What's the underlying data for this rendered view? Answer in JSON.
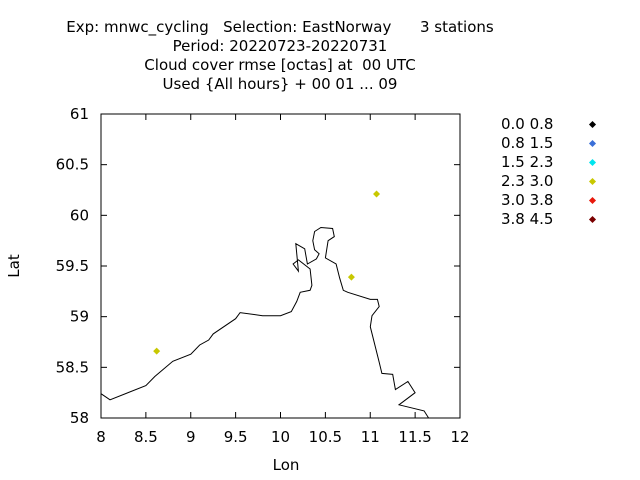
{
  "titles": [
    "Exp: mnwc_cycling   Selection: EastNorway      3 stations",
    "Period: 20220723-20220731",
    "Cloud cover rmse [octas] at  00 UTC",
    "Used {All hours} + 00 01 ... 09"
  ],
  "legend": [
    {
      "label": "0.0 0.8",
      "color": "#000000"
    },
    {
      "label": "0.8 1.5",
      "color": "#3a6fd8"
    },
    {
      "label": "1.5 2.3",
      "color": "#00e5ee"
    },
    {
      "label": "2.3 3.0",
      "color": "#c8c800"
    },
    {
      "label": "3.0 3.8",
      "color": "#e8190c"
    },
    {
      "label": "3.8 4.5",
      "color": "#7a0000"
    }
  ],
  "chart_data": {
    "type": "scatter",
    "xlabel": "Lon",
    "ylabel": "Lat",
    "xlim": [
      8,
      12
    ],
    "ylim": [
      58,
      61
    ],
    "x_ticks": [
      "8",
      "8.5",
      "9",
      "9.5",
      "10",
      "10.5",
      "11",
      "11.5",
      "12"
    ],
    "y_ticks": [
      "58",
      "58.5",
      "59",
      "59.5",
      "60",
      "60.5",
      "61"
    ],
    "points": [
      {
        "lon": 11.07,
        "lat": 60.21,
        "color": "#c8c800"
      },
      {
        "lon": 10.79,
        "lat": 59.39,
        "color": "#c8c800"
      },
      {
        "lon": 8.62,
        "lat": 58.66,
        "color": "#c8c800"
      }
    ],
    "coastline": [
      [
        8.0,
        58.24
      ],
      [
        8.1,
        58.18
      ],
      [
        8.5,
        58.32
      ],
      [
        8.6,
        58.41
      ],
      [
        8.8,
        58.56
      ],
      [
        9.0,
        58.63
      ],
      [
        9.1,
        58.72
      ],
      [
        9.2,
        58.77
      ],
      [
        9.25,
        58.83
      ],
      [
        9.5,
        58.98
      ],
      [
        9.55,
        59.04
      ],
      [
        9.8,
        59.01
      ],
      [
        10.0,
        59.01
      ],
      [
        10.12,
        59.05
      ],
      [
        10.18,
        59.15
      ],
      [
        10.22,
        59.24
      ],
      [
        10.33,
        59.26
      ],
      [
        10.35,
        59.31
      ],
      [
        10.33,
        59.47
      ],
      [
        10.2,
        59.56
      ],
      [
        10.14,
        59.52
      ],
      [
        10.2,
        59.45
      ],
      [
        10.17,
        59.72
      ],
      [
        10.27,
        59.67
      ],
      [
        10.3,
        59.52
      ],
      [
        10.4,
        59.57
      ],
      [
        10.43,
        59.62
      ],
      [
        10.38,
        59.66
      ],
      [
        10.36,
        59.75
      ],
      [
        10.38,
        59.84
      ],
      [
        10.45,
        59.88
      ],
      [
        10.58,
        59.87
      ],
      [
        10.6,
        59.79
      ],
      [
        10.53,
        59.75
      ],
      [
        10.5,
        59.58
      ],
      [
        10.62,
        59.52
      ],
      [
        10.66,
        59.38
      ],
      [
        10.7,
        59.26
      ],
      [
        10.75,
        59.24
      ],
      [
        11.0,
        59.17
      ],
      [
        11.08,
        59.17
      ],
      [
        11.1,
        59.1
      ],
      [
        11.02,
        59.01
      ],
      [
        11.0,
        58.9
      ],
      [
        11.1,
        58.55
      ],
      [
        11.13,
        58.44
      ],
      [
        11.25,
        58.43
      ],
      [
        11.28,
        58.28
      ],
      [
        11.42,
        58.36
      ],
      [
        11.5,
        58.25
      ],
      [
        11.32,
        58.13
      ],
      [
        11.6,
        58.07
      ],
      [
        11.65,
        58.0
      ]
    ]
  }
}
